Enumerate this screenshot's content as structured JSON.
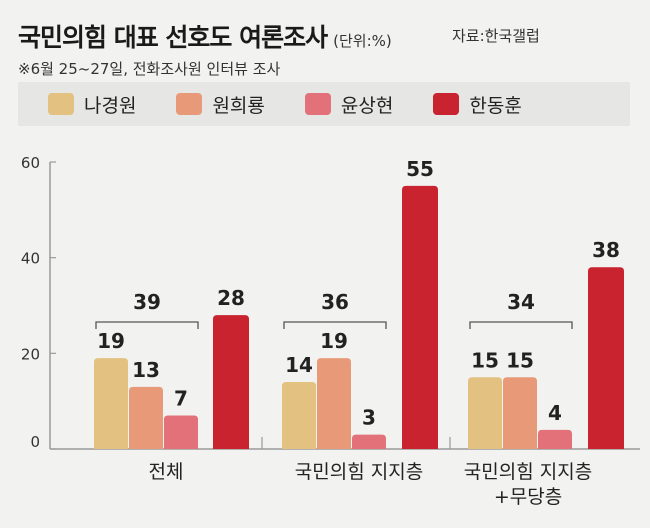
{
  "header": {
    "title": "국민의힘 대표 선호도 여론조사",
    "unit": "(단위:%)",
    "source": "자료:한국갤럽",
    "note": "※6월 25~27일, 전화조사원 인터뷰 조사"
  },
  "colors": {
    "bg": "#f2f2f0",
    "legend_bg": "#e6e6e4",
    "axis": "#9a9a9a"
  },
  "chart_data": {
    "type": "bar",
    "title": "국민의힘 대표 선호도 여론조사",
    "xlabel": "",
    "ylabel": "",
    "ylim": [
      0,
      60
    ],
    "yticks": [
      "0",
      "20",
      "40",
      "60"
    ],
    "categories": [
      [
        "전체"
      ],
      [
        "국민의힘 지지층"
      ],
      [
        "국민의힘 지지층",
        "+무당층"
      ]
    ],
    "series": [
      {
        "name": "나경원",
        "color": "#e3c181",
        "values": [
          19,
          14,
          15
        ]
      },
      {
        "name": "원희룡",
        "color": "#e89a78",
        "values": [
          13,
          19,
          15
        ]
      },
      {
        "name": "윤상현",
        "color": "#e3717a",
        "values": [
          7,
          3,
          4
        ]
      },
      {
        "name": "한동훈",
        "color": "#c8232f",
        "values": [
          28,
          55,
          38
        ]
      }
    ],
    "group_totals": [
      "39",
      "36",
      "34"
    ],
    "legend": "top"
  }
}
